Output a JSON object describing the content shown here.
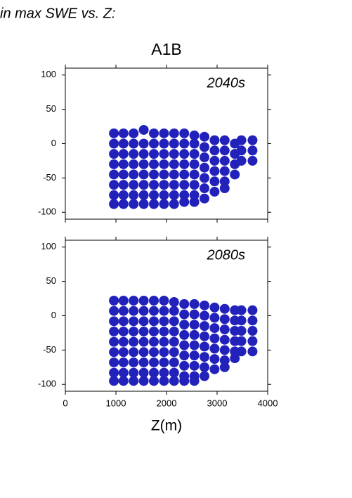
{
  "header": {
    "title": "in max SWE vs. Z:",
    "subtitle": "A1B"
  },
  "chart_data": [
    {
      "type": "scatter",
      "annotation": "2040s",
      "color": "#2222bb",
      "xlim": [
        0,
        4000
      ],
      "ylim": [
        -110,
        110
      ],
      "yticks": [
        -100,
        -50,
        0,
        50,
        100
      ],
      "xticks": [
        0,
        1000,
        2000,
        3000,
        4000
      ],
      "show_xtick_labels": false,
      "series": [
        {
          "color": "#2222bb",
          "x": [
            960,
            960,
            960,
            960,
            960,
            960,
            960,
            960,
            1150,
            1150,
            1150,
            1150,
            1150,
            1150,
            1150,
            1150,
            1350,
            1350,
            1350,
            1350,
            1350,
            1350,
            1350,
            1350,
            1550,
            1550,
            1550,
            1550,
            1550,
            1550,
            1550,
            1550,
            1750,
            1750,
            1750,
            1750,
            1750,
            1750,
            1750,
            1750,
            1950,
            1950,
            1950,
            1950,
            1950,
            1950,
            1950,
            1950,
            2150,
            2150,
            2150,
            2150,
            2150,
            2150,
            2150,
            2150,
            2350,
            2350,
            2350,
            2350,
            2350,
            2350,
            2350,
            2350,
            2550,
            2550,
            2550,
            2550,
            2550,
            2550,
            2550,
            2550,
            2750,
            2750,
            2750,
            2750,
            2750,
            2750,
            2750,
            2950,
            2950,
            2950,
            2950,
            2950,
            2950,
            3150,
            3150,
            3150,
            3150,
            3150,
            3150,
            3350,
            3350,
            3350,
            3350,
            3480,
            3480,
            3480,
            3700,
            3700,
            3700
          ],
          "values": [
            15,
            0,
            -15,
            -30,
            -45,
            -60,
            -75,
            -88,
            15,
            0,
            -15,
            -30,
            -45,
            -60,
            -75,
            -88,
            15,
            0,
            -15,
            -30,
            -45,
            -60,
            -75,
            -88,
            20,
            0,
            -15,
            -30,
            -45,
            -60,
            -75,
            -88,
            15,
            0,
            -15,
            -30,
            -45,
            -60,
            -75,
            -88,
            15,
            0,
            -15,
            -30,
            -45,
            -60,
            -75,
            -88,
            15,
            0,
            -15,
            -30,
            -45,
            -60,
            -75,
            -88,
            15,
            0,
            -15,
            -30,
            -45,
            -60,
            -75,
            -85,
            12,
            0,
            -15,
            -30,
            -45,
            -60,
            -75,
            -85,
            10,
            -5,
            -20,
            -35,
            -50,
            -65,
            -80,
            5,
            -10,
            -25,
            -40,
            -55,
            -70,
            5,
            -10,
            -25,
            -40,
            -55,
            -65,
            0,
            -15,
            -30,
            -45,
            5,
            -10,
            -25,
            5,
            -10,
            -25
          ]
        }
      ]
    },
    {
      "type": "scatter",
      "annotation": "2080s",
      "color": "#2222bb",
      "xlim": [
        0,
        4000
      ],
      "ylim": [
        -110,
        110
      ],
      "yticks": [
        -100,
        -50,
        0,
        50,
        100
      ],
      "xticks": [
        0,
        1000,
        2000,
        3000,
        4000
      ],
      "show_xtick_labels": true,
      "xlabel": "Z(m)",
      "series": [
        {
          "color": "#2222bb",
          "x": [
            960,
            960,
            960,
            960,
            960,
            960,
            960,
            960,
            960,
            1150,
            1150,
            1150,
            1150,
            1150,
            1150,
            1150,
            1150,
            1150,
            1350,
            1350,
            1350,
            1350,
            1350,
            1350,
            1350,
            1350,
            1350,
            1550,
            1550,
            1550,
            1550,
            1550,
            1550,
            1550,
            1550,
            1550,
            1750,
            1750,
            1750,
            1750,
            1750,
            1750,
            1750,
            1750,
            1750,
            1950,
            1950,
            1950,
            1950,
            1950,
            1950,
            1950,
            1950,
            1950,
            2150,
            2150,
            2150,
            2150,
            2150,
            2150,
            2150,
            2150,
            2150,
            2350,
            2350,
            2350,
            2350,
            2350,
            2350,
            2350,
            2350,
            2350,
            2550,
            2550,
            2550,
            2550,
            2550,
            2550,
            2550,
            2550,
            2550,
            2750,
            2750,
            2750,
            2750,
            2750,
            2750,
            2750,
            2750,
            2950,
            2950,
            2950,
            2950,
            2950,
            2950,
            2950,
            3150,
            3150,
            3150,
            3150,
            3150,
            3150,
            3150,
            3350,
            3350,
            3350,
            3350,
            3350,
            3350,
            3480,
            3480,
            3480,
            3480,
            3480,
            3700,
            3700,
            3700,
            3700,
            3700
          ],
          "values": [
            22,
            7,
            -8,
            -23,
            -38,
            -53,
            -68,
            -83,
            -95,
            22,
            7,
            -8,
            -23,
            -38,
            -53,
            -68,
            -83,
            -95,
            22,
            7,
            -8,
            -23,
            -38,
            -53,
            -68,
            -83,
            -95,
            22,
            7,
            -8,
            -23,
            -38,
            -53,
            -68,
            -83,
            -95,
            22,
            7,
            -8,
            -23,
            -38,
            -53,
            -68,
            -83,
            -95,
            22,
            7,
            -8,
            -23,
            -38,
            -53,
            -68,
            -83,
            -95,
            20,
            7,
            -8,
            -23,
            -38,
            -53,
            -68,
            -83,
            -95,
            17,
            2,
            -13,
            -28,
            -43,
            -58,
            -73,
            -88,
            -95,
            17,
            2,
            -13,
            -28,
            -43,
            -58,
            -73,
            -88,
            -95,
            15,
            0,
            -15,
            -30,
            -45,
            -60,
            -75,
            -88,
            12,
            -3,
            -18,
            -33,
            -48,
            -63,
            -78,
            10,
            -5,
            -20,
            -35,
            -50,
            -65,
            -75,
            8,
            -7,
            -22,
            -37,
            -52,
            -62,
            8,
            -7,
            -22,
            -37,
            -52,
            8,
            -7,
            -22,
            -37,
            -52
          ]
        }
      ]
    }
  ]
}
